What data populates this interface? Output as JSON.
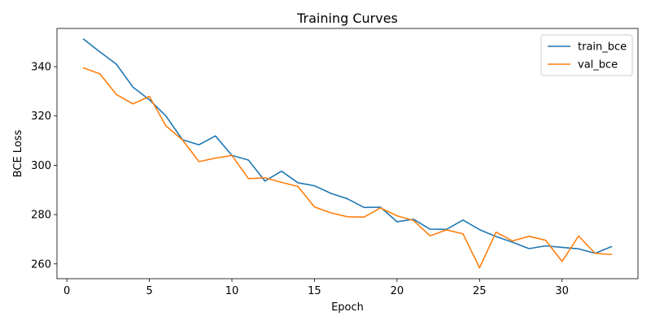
{
  "chart_data": {
    "type": "line",
    "title": "Training Curves",
    "xlabel": "Epoch",
    "ylabel": "BCE Loss",
    "xlim": [
      -0.6,
      34.6
    ],
    "ylim": [
      254.0,
      355.5
    ],
    "xticks": [
      0,
      5,
      10,
      15,
      20,
      25,
      30
    ],
    "yticks": [
      260,
      280,
      300,
      320,
      340
    ],
    "grid": false,
    "legend_position": "top-right",
    "x": [
      1,
      2,
      3,
      4,
      5,
      6,
      7,
      8,
      9,
      10,
      11,
      12,
      13,
      14,
      15,
      16,
      17,
      18,
      19,
      20,
      21,
      22,
      23,
      24,
      25,
      26,
      27,
      28,
      29,
      30,
      31,
      32,
      33
    ],
    "series": [
      {
        "name": "train_bce",
        "color": "#1f77b4",
        "values": [
          351.2,
          346.0,
          341.0,
          331.7,
          326.6,
          320.0,
          310.4,
          308.3,
          311.9,
          304.0,
          302.1,
          293.6,
          297.6,
          292.9,
          291.7,
          288.6,
          286.4,
          282.9,
          283.0,
          277.1,
          278.1,
          274.1,
          274.0,
          277.8,
          273.9,
          271.1,
          268.8,
          266.2,
          267.3,
          266.7,
          266.1,
          264.3,
          267.0
        ]
      },
      {
        "name": "val_bce",
        "color": "#ff7f0e",
        "values": [
          339.5,
          337.1,
          328.7,
          324.9,
          327.9,
          316.0,
          310.3,
          301.5,
          302.9,
          304.0,
          294.6,
          294.9,
          293.1,
          291.4,
          283.1,
          280.7,
          279.1,
          279.0,
          282.7,
          279.5,
          277.6,
          271.4,
          273.8,
          272.2,
          258.4,
          272.9,
          269.3,
          271.2,
          269.6,
          261.0,
          271.3,
          264.3,
          263.8
        ]
      }
    ]
  }
}
